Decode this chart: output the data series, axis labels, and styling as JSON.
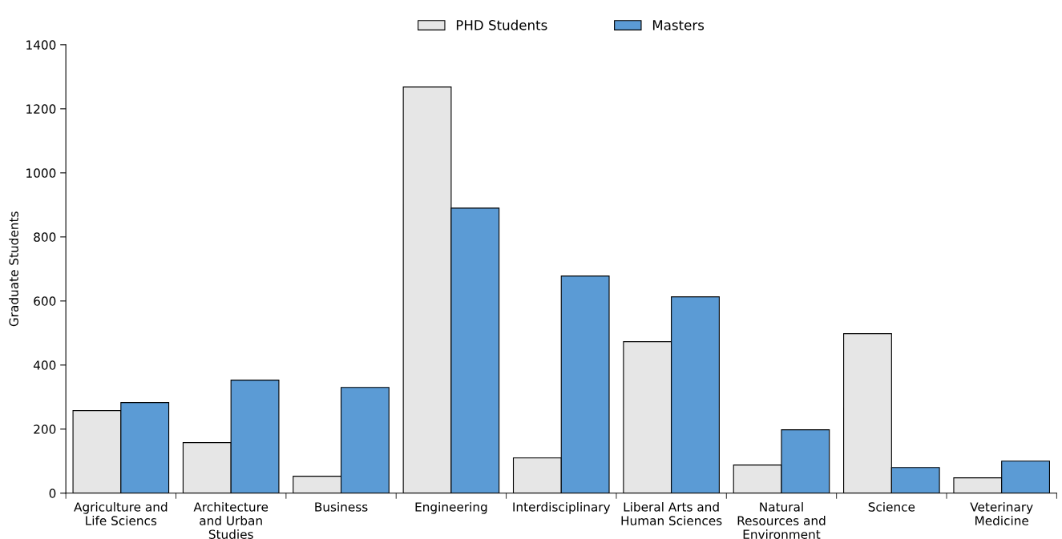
{
  "chart_data": {
    "type": "bar",
    "ylabel": "Graduate Students",
    "categories": [
      "Agriculture and Life Sciencs",
      "Architecture and Urban Studies",
      "Business",
      "Engineering",
      "Interdisciplinary",
      "Liberal Arts and Human Sciences",
      "Natural Resources and Environment",
      "Science",
      "Veterinary Medicine"
    ],
    "series": [
      {
        "name": "PHD Students",
        "color": "#e6e6e6",
        "values": [
          258,
          158,
          53,
          1268,
          110,
          473,
          88,
          498,
          48
        ]
      },
      {
        "name": "Masters",
        "color": "#5b9bd5",
        "values": [
          283,
          353,
          330,
          890,
          678,
          613,
          198,
          80,
          100
        ]
      }
    ],
    "ylim": [
      0,
      1400
    ],
    "yticks": [
      0,
      200,
      400,
      600,
      800,
      1000,
      1200,
      1400
    ],
    "grid": false,
    "legend": "top"
  }
}
